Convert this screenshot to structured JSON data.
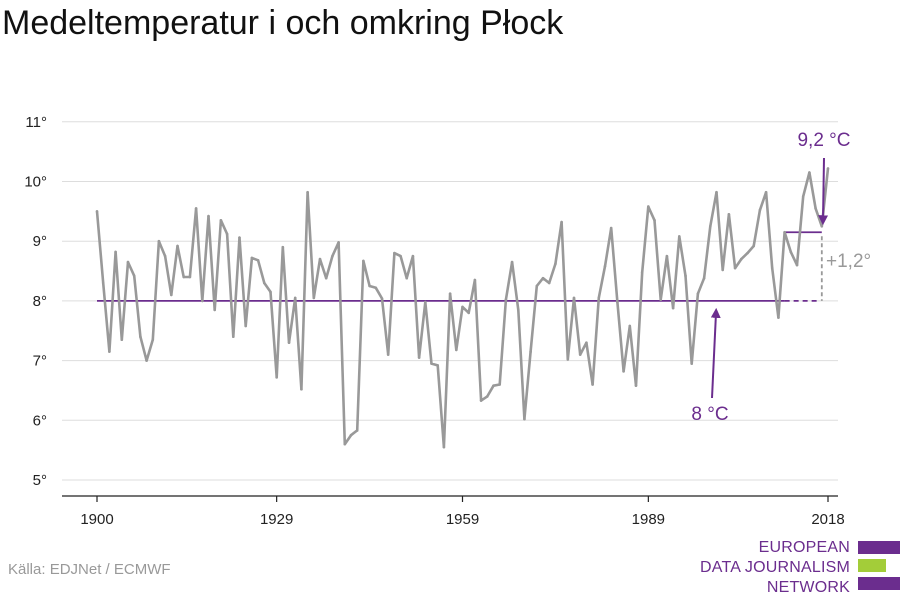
{
  "title": "Medeltemperatur i och omkring Płock",
  "source": "Källa: EDJNet / ECMWF",
  "logo": {
    "lines": [
      "EUROPEAN",
      "DATA JOURNALISM",
      "NETWORK"
    ],
    "colors": {
      "purple": "#6b2d8e",
      "green": "#a3cd39"
    }
  },
  "colors": {
    "series": "#999999",
    "baseline": "#6b2d8e",
    "grid": "#dddddd",
    "axis": "#222222",
    "annotation": "#6b2d8e",
    "diff": "#999999"
  },
  "chart_data": {
    "type": "line",
    "title": "Medeltemperatur i och omkring Płock",
    "xlabel": "",
    "ylabel": "",
    "xlim": [
      1898,
      2020
    ],
    "ylim": [
      4.7,
      11.2
    ],
    "x_ticks": [
      1900,
      1929,
      1959,
      1989,
      2018
    ],
    "y_ticks": [
      5,
      6,
      7,
      8,
      9,
      10,
      11
    ],
    "y_tick_labels": [
      "5°",
      "6°",
      "7°",
      "8°",
      "9°",
      "10°",
      "11°"
    ],
    "grid": true,
    "series": [
      {
        "x": [
          1900,
          1901,
          1902,
          1903,
          1904,
          1905,
          1906,
          1907,
          1908,
          1909,
          1910,
          1911,
          1912,
          1913,
          1914,
          1915,
          1916,
          1917,
          1918,
          1919,
          1920,
          1921,
          1922,
          1923,
          1924,
          1925,
          1926,
          1927,
          1928,
          1929,
          1930,
          1931,
          1932,
          1933,
          1934,
          1935,
          1936,
          1937,
          1938,
          1939,
          1940,
          1941,
          1942,
          1943,
          1944,
          1945,
          1946,
          1947,
          1948,
          1949,
          1950,
          1951,
          1952,
          1953,
          1954,
          1955,
          1956,
          1957,
          1958,
          1959,
          1960,
          1961,
          1962,
          1963,
          1964,
          1965,
          1966,
          1967,
          1968,
          1969,
          1970,
          1971,
          1972,
          1973,
          1974,
          1975,
          1976,
          1977,
          1978,
          1979,
          1980,
          1981,
          1982,
          1983,
          1984,
          1985,
          1986,
          1987,
          1988,
          1989,
          1990,
          1991,
          1992,
          1993,
          1994,
          1995,
          1996,
          1997,
          1998,
          1999,
          2000,
          2001,
          2002,
          2003,
          2004,
          2005,
          2006,
          2007,
          2008,
          2009,
          2010,
          2011,
          2012,
          2013,
          2014,
          2015,
          2016,
          2017,
          2018
        ],
        "values": [
          9.5,
          8.3,
          7.15,
          8.82,
          7.35,
          8.65,
          8.42,
          7.4,
          7.0,
          7.35,
          9.0,
          8.75,
          8.1,
          8.92,
          8.4,
          8.4,
          9.55,
          8.0,
          9.42,
          7.85,
          9.35,
          9.12,
          7.4,
          9.06,
          7.58,
          8.72,
          8.68,
          8.3,
          8.15,
          6.72,
          8.9,
          7.3,
          8.05,
          6.52,
          9.82,
          8.05,
          8.7,
          8.38,
          8.75,
          8.98,
          5.6,
          5.75,
          5.83,
          8.67,
          8.25,
          8.22,
          8.04,
          7.1,
          8.8,
          8.75,
          8.38,
          8.75,
          7.05,
          7.98,
          6.95,
          6.92,
          5.55,
          8.12,
          7.18,
          7.9,
          7.8,
          8.35,
          6.33,
          6.4,
          6.58,
          6.6,
          8.02,
          8.65,
          7.85,
          6.02,
          7.15,
          8.25,
          8.38,
          8.3,
          8.62,
          9.32,
          7.02,
          8.05,
          7.1,
          7.3,
          6.6,
          8.05,
          8.58,
          9.22,
          7.98,
          6.82,
          7.58,
          6.58,
          8.48,
          9.58,
          9.35,
          8.02,
          8.75,
          7.88,
          9.08,
          8.42,
          6.95,
          8.12,
          8.38,
          9.25,
          9.82,
          8.52,
          9.45,
          8.55,
          8.7,
          8.8,
          8.92,
          9.52,
          9.82,
          8.55,
          7.72,
          9.15,
          8.82,
          8.6,
          9.75,
          10.15,
          9.55,
          9.25,
          10.22
        ]
      }
    ],
    "baseline": {
      "value": 8.0,
      "x_from": 1900,
      "x_to": 2017,
      "solid_until": 2011
    },
    "recent_avg": {
      "value": 9.15,
      "x_from": 2011,
      "x_to": 2017
    },
    "annotations": {
      "recent": {
        "label": "9,2 °C",
        "x": 2017,
        "value": 9.15
      },
      "base": {
        "label": "8 °C",
        "x": 2011,
        "value": 8.0
      },
      "diff": {
        "label": "+1,2°",
        "x": 2017
      }
    }
  }
}
